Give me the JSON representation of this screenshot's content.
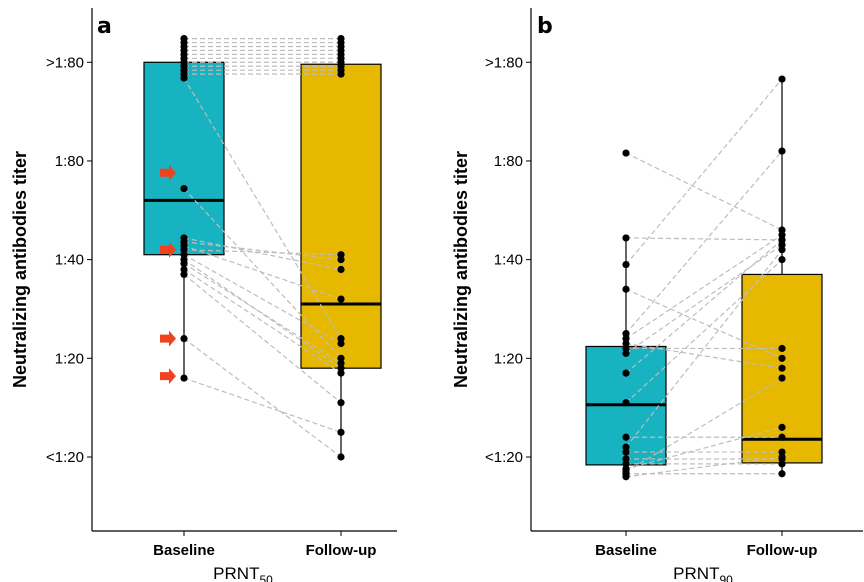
{
  "chart_data": [
    {
      "panel": "a",
      "type": "box",
      "ylabel": "Neutralizing antibodies titer",
      "xlabel_main": "PRNT",
      "xlabel_sub": "50",
      "categories": [
        "Baseline",
        "Follow-up"
      ],
      "y_ticks": [
        {
          "value": 0,
          "label": "<1:20"
        },
        {
          "value": 1,
          "label": "1:20"
        },
        {
          "value": 2,
          "label": "1:40"
        },
        {
          "value": 3,
          "label": "1:80"
        },
        {
          "value": 4,
          "label": ">1:80"
        }
      ],
      "ylim": [
        -0.75,
        4.55
      ],
      "colors": {
        "Baseline": "#17B3C1",
        "Follow-up": "#E6B800"
      },
      "box": {
        "Baseline": {
          "q1": 2.05,
          "median": 2.6,
          "q3": 4.0,
          "lower": 0.8,
          "upper": 4.24
        },
        "Follow-up": {
          "q1": 0.9,
          "median": 1.55,
          "q3": 3.98,
          "lower": 0.0,
          "upper": 4.24
        }
      },
      "pairs": [
        [
          4.24,
          4.24
        ],
        [
          4.2,
          4.2
        ],
        [
          4.16,
          4.16
        ],
        [
          4.12,
          4.12
        ],
        [
          4.08,
          4.08
        ],
        [
          4.04,
          4.04
        ],
        [
          4.0,
          4.0
        ],
        [
          3.96,
          3.96
        ],
        [
          3.92,
          3.92
        ],
        [
          3.88,
          3.88
        ],
        [
          3.84,
          1.2
        ],
        [
          2.72,
          1.0
        ],
        [
          2.22,
          1.9
        ],
        [
          2.18,
          2.0
        ],
        [
          2.14,
          1.6
        ],
        [
          2.1,
          2.05
        ],
        [
          2.05,
          1.15
        ],
        [
          2.0,
          0.9
        ],
        [
          1.96,
          0.95
        ],
        [
          1.9,
          0.85
        ],
        [
          1.85,
          0.55
        ],
        [
          1.2,
          0.0
        ],
        [
          0.8,
          0.25
        ]
      ],
      "arrows": [
        2.88,
        2.1,
        1.2,
        0.82
      ]
    },
    {
      "panel": "b",
      "type": "box",
      "ylabel": "Neutralizing antibodies titer",
      "xlabel_main": "PRNT",
      "xlabel_sub": "90",
      "categories": [
        "Baseline",
        "Follow-up"
      ],
      "y_ticks": [
        {
          "value": 0,
          "label": "<1:20"
        },
        {
          "value": 1,
          "label": "1:20"
        },
        {
          "value": 2,
          "label": "1:40"
        },
        {
          "value": 3,
          "label": "1:80"
        },
        {
          "value": 4,
          "label": ">1:80"
        }
      ],
      "ylim": [
        -0.75,
        4.55
      ],
      "colors": {
        "Baseline": "#17B3C1",
        "Follow-up": "#E6B800"
      },
      "box": {
        "Baseline": {
          "q1": -0.08,
          "median": 0.53,
          "q3": 1.12,
          "lower": -0.2,
          "upper": 2.22
        },
        "Follow-up": {
          "q1": -0.06,
          "median": 0.18,
          "q3": 1.85,
          "lower": -0.2,
          "upper": 3.83
        }
      },
      "pairs": [
        [
          3.08,
          2.3
        ],
        [
          2.22,
          2.2
        ],
        [
          1.95,
          3.83
        ],
        [
          1.7,
          1.0
        ],
        [
          1.25,
          3.1
        ],
        [
          1.2,
          2.25
        ],
        [
          1.15,
          0.9
        ],
        [
          1.1,
          1.1
        ],
        [
          1.05,
          2.15
        ],
        [
          0.85,
          2.2
        ],
        [
          0.55,
          2.0
        ],
        [
          0.2,
          0.2
        ],
        [
          0.1,
          2.1
        ],
        [
          0.05,
          0.05
        ],
        [
          -0.02,
          -0.02
        ],
        [
          -0.07,
          -0.07
        ],
        [
          -0.12,
          0.3
        ],
        [
          -0.17,
          -0.17
        ],
        [
          -0.2,
          0.0
        ],
        [
          -0.15,
          0.8
        ]
      ],
      "arrows": []
    }
  ]
}
